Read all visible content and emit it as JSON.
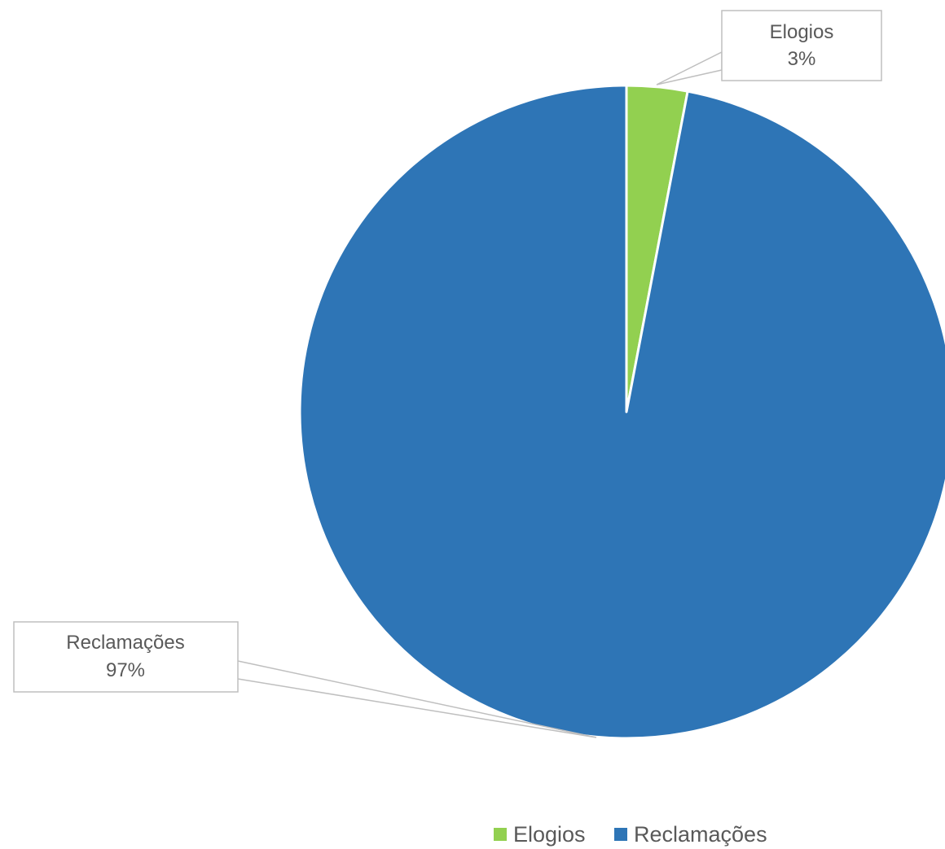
{
  "chart_data": {
    "type": "pie",
    "title": "",
    "series": [
      {
        "name": "Elogios",
        "value": 3,
        "label": "3%",
        "color": "#92d050"
      },
      {
        "name": "Reclamações",
        "value": 97,
        "label": "97%",
        "color": "#2e75b6"
      }
    ],
    "start_angle": "12 o'clock",
    "direction": "clockwise",
    "legend_position": "bottom-right",
    "data_labels": "callout boxes with category name and percentage"
  }
}
